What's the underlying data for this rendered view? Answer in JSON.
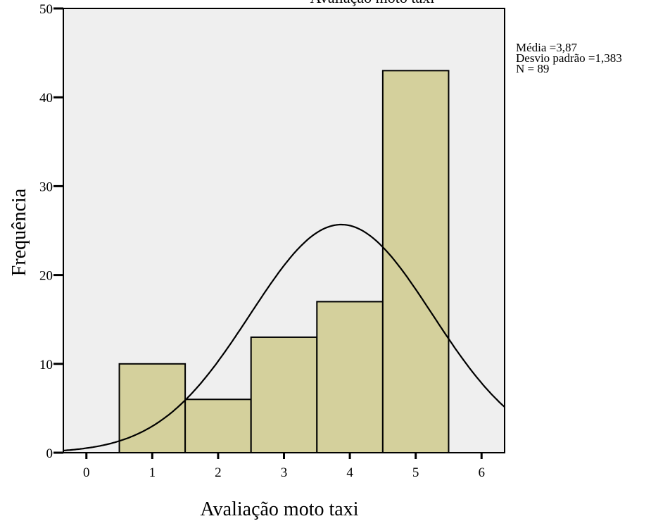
{
  "chart_data": {
    "type": "bar",
    "title": "Avaliação moto taxi",
    "xlabel": "Avaliação moto taxi",
    "ylabel": "Frequência",
    "categories": [
      1,
      2,
      3,
      4,
      5
    ],
    "values": [
      10,
      6,
      13,
      17,
      43
    ],
    "bin_width": 1,
    "xlim": [
      -0.35,
      6.35
    ],
    "ylim": [
      0,
      50
    ],
    "xticks": [
      0,
      1,
      2,
      3,
      4,
      5,
      6
    ],
    "yticks": [
      0,
      10,
      20,
      30,
      40,
      50
    ],
    "normal_curve": {
      "mean": 3.87,
      "std": 1.383,
      "n": 89
    },
    "stats": [
      "Média =3,87",
      "Desvio padrão =1,383",
      "N = 89"
    ],
    "colors": {
      "bar": "#d4d09c",
      "plot_background": "#efefef",
      "curve": "#000000"
    },
    "grid": false
  }
}
